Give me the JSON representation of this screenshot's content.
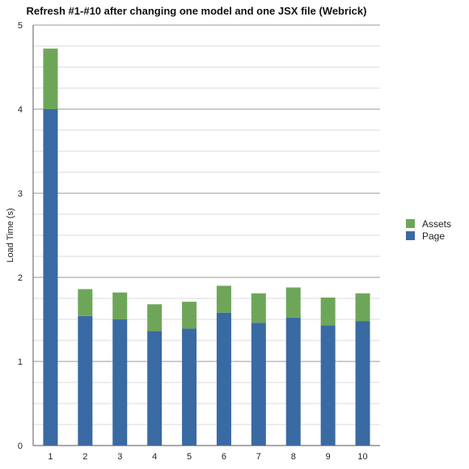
{
  "chart_data": {
    "type": "bar",
    "stacked": true,
    "title": "Refresh #1-#10 after changing one model and one JSX file (Webrick)",
    "xlabel": "",
    "ylabel": "Load Time (s)",
    "ylim": [
      0,
      5
    ],
    "yticks": [
      "0",
      "1",
      "2",
      "3",
      "4",
      "5"
    ],
    "grid": true,
    "legend_position": "right",
    "categories": [
      "1",
      "2",
      "3",
      "4",
      "5",
      "6",
      "7",
      "8",
      "9",
      "10"
    ],
    "series": [
      {
        "name": "Page",
        "color": "#3a6aa3",
        "values": [
          4.0,
          1.54,
          1.5,
          1.36,
          1.39,
          1.58,
          1.46,
          1.52,
          1.43,
          1.48
        ]
      },
      {
        "name": "Assets",
        "color": "#6ea659",
        "values": [
          0.72,
          0.32,
          0.32,
          0.32,
          0.32,
          0.32,
          0.35,
          0.36,
          0.33,
          0.33
        ]
      }
    ],
    "legend": [
      {
        "label": "Assets",
        "color": "#6ea659"
      },
      {
        "label": "Page",
        "color": "#3a6aa3"
      }
    ]
  }
}
